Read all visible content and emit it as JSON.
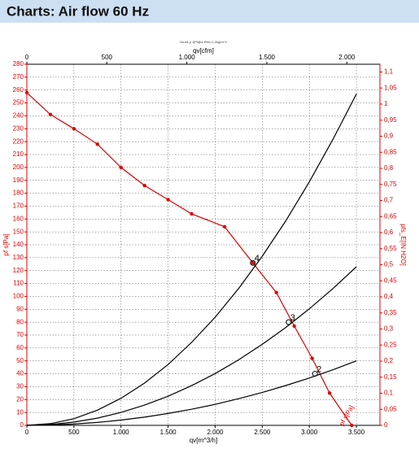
{
  "header": {
    "title": "Charts: Air flow 60 Hz"
  },
  "chart_data": {
    "type": "line",
    "caption": "Druck p 1[Pa]bz Rho=1,2kg/m^3",
    "xlabel": "qv[m^3/h]",
    "x2label": "qv[cfm]",
    "ylabel": "pf s[Pa]",
    "y2label": "pfs_E[IN H2O]",
    "xlim": [
      0,
      3750
    ],
    "xticks": [
      0,
      500,
      {
        "value": 1000,
        "label": "1.000"
      },
      {
        "value": 1500,
        "label": "1.500"
      },
      {
        "value": 2000,
        "label": "2.000"
      },
      {
        "value": 2500,
        "label": "2.500"
      },
      {
        "value": 3000,
        "label": "3.000"
      },
      {
        "value": 3500,
        "label": "3.500"
      }
    ],
    "x2lim": [
      0,
      2207
    ],
    "x2ticks": [
      0,
      500,
      {
        "value": 1000,
        "label": "1.000"
      },
      {
        "value": 1500,
        "label": "1.500"
      },
      {
        "value": 2000,
        "label": "2.000"
      }
    ],
    "ylim": [
      0,
      280
    ],
    "yticks": [
      0,
      10,
      20,
      30,
      40,
      50,
      60,
      70,
      80,
      90,
      100,
      110,
      120,
      130,
      140,
      150,
      160,
      170,
      180,
      190,
      200,
      210,
      220,
      230,
      240,
      250,
      260,
      270,
      280
    ],
    "y2lim": [
      0,
      1.124
    ],
    "y2ticks": [
      0,
      {
        "value": 0.05,
        "label": "0,05"
      },
      {
        "value": 0.1,
        "label": "0,1"
      },
      {
        "value": 0.15,
        "label": "0,15"
      },
      {
        "value": 0.2,
        "label": "0,2"
      },
      {
        "value": 0.25,
        "label": "0,25"
      },
      {
        "value": 0.3,
        "label": "0,3"
      },
      {
        "value": 0.35,
        "label": "0,35"
      },
      {
        "value": 0.4,
        "label": "0,4"
      },
      {
        "value": 0.45,
        "label": "0,45"
      },
      {
        "value": 0.5,
        "label": "0,5"
      },
      {
        "value": 0.55,
        "label": "0,55"
      },
      {
        "value": 0.6,
        "label": "0,6"
      },
      {
        "value": 0.65,
        "label": "0,65"
      },
      {
        "value": 0.7,
        "label": "0,7"
      },
      {
        "value": 0.75,
        "label": "0,75"
      },
      {
        "value": 0.8,
        "label": "0,8"
      },
      {
        "value": 0.85,
        "label": "0,85"
      },
      {
        "value": 0.9,
        "label": "0,9"
      },
      {
        "value": 0.95,
        "label": "0,95"
      },
      {
        "value": 1,
        "label": "1"
      },
      {
        "value": 1.05,
        "label": "1,05"
      },
      {
        "value": 1.1,
        "label": "1,1"
      }
    ],
    "grid": true,
    "series": [
      {
        "name": "pf s[Pa]",
        "color": "#e00000",
        "markers": true,
        "x": [
          0,
          250,
          500,
          750,
          1000,
          1250,
          1500,
          1750,
          2100,
          2400,
          2650,
          2840,
          3030,
          3215,
          3450
        ],
        "values": [
          258,
          241,
          230,
          218,
          200,
          186,
          175,
          164,
          154,
          126,
          103,
          77,
          52,
          25,
          0
        ]
      },
      {
        "color": "#000000",
        "x": [
          0,
          250,
          500,
          750,
          1000,
          1250,
          1500,
          1750,
          2000,
          2250,
          2500,
          2750,
          3000,
          3250,
          3500
        ],
        "values": [
          0,
          1.3,
          5.2,
          11.8,
          21,
          32.8,
          47.2,
          64.3,
          83.9,
          106.2,
          131.1,
          158.6,
          188.8,
          221.6,
          257
        ]
      },
      {
        "color": "#000000",
        "x": [
          0,
          250,
          500,
          750,
          1000,
          1250,
          1500,
          1750,
          2000,
          2250,
          2500,
          2750,
          3000,
          3250,
          3500
        ],
        "values": [
          0,
          0.6,
          2.5,
          5.6,
          10,
          15.7,
          22.6,
          30.8,
          40.2,
          50.8,
          62.8,
          75.9,
          90.4,
          106,
          123
        ]
      },
      {
        "color": "#000000",
        "x": [
          0,
          250,
          500,
          750,
          1000,
          1250,
          1500,
          1750,
          2000,
          2250,
          2500,
          2750,
          3000,
          3250,
          3500
        ],
        "values": [
          0,
          0.3,
          1,
          2.3,
          4.1,
          6.4,
          9.2,
          12.5,
          16.3,
          20.7,
          25.5,
          30.9,
          36.7,
          43.1,
          50
        ]
      }
    ],
    "operating_points": [
      {
        "label": "4",
        "x": 2400,
        "y": 126
      },
      {
        "label": "3",
        "x": 2780,
        "y": 80
      },
      {
        "label": "2",
        "x": 3060,
        "y": 40
      }
    ]
  }
}
